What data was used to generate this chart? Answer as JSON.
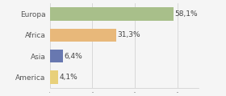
{
  "categories": [
    "Europa",
    "Africa",
    "Asia",
    "America"
  ],
  "values": [
    58.1,
    31.3,
    6.4,
    4.1
  ],
  "labels": [
    "58,1%",
    "31,3%",
    "6,4%",
    "4,1%"
  ],
  "colors": [
    "#a8bf8a",
    "#e8b87a",
    "#6878b0",
    "#e8d07a"
  ],
  "xlim": [
    0,
    70
  ],
  "background_color": "#f5f5f5",
  "label_fontsize": 6.5,
  "tick_fontsize": 6.5,
  "bar_height": 0.65
}
